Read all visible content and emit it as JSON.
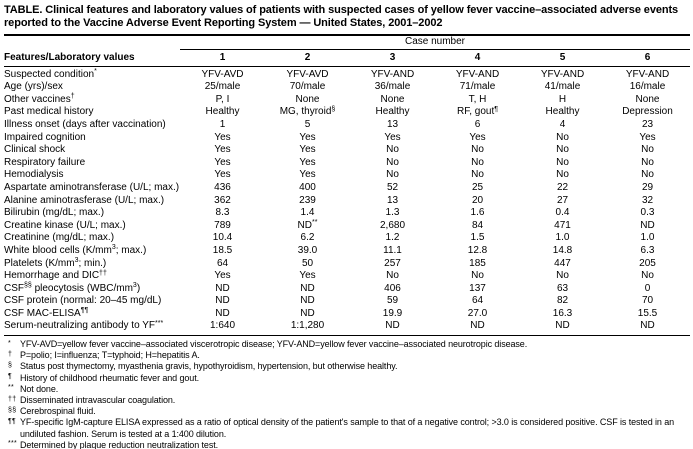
{
  "title": "TABLE. Clinical features and laboratory values of patients with suspected cases of yellow fever vaccine–associated adverse events reported to the Vaccine Adverse Event Reporting System — United States, 2001–2002",
  "colors": {
    "text": "#000000",
    "background": "#ffffff",
    "rule": "#000000"
  },
  "table": {
    "span_header": "Case number",
    "col_header_label": "Features/Laboratory values",
    "case_numbers": [
      "1",
      "2",
      "3",
      "4",
      "5",
      "6"
    ],
    "rows": [
      {
        "label": "Suspected condition^{*}",
        "values": [
          "YFV-AVD",
          "YFV-AVD",
          "YFV-AND",
          "YFV-AND",
          "YFV-AND",
          "YFV-AND"
        ]
      },
      {
        "label": "Age (yrs)/sex",
        "values": [
          "25/male",
          "70/male",
          "36/male",
          "71/male",
          "41/male",
          "16/male"
        ]
      },
      {
        "label": "Other vaccines^{†}",
        "values": [
          "P, I",
          "None",
          "None",
          "T, H",
          "H",
          "None"
        ]
      },
      {
        "label": "Past medical history",
        "values": [
          "Healthy",
          "MG, thyroid^{§}",
          "Healthy",
          "RF, gout^{¶}",
          "Healthy",
          "Depression"
        ]
      },
      {
        "label": "Illness onset (days after vaccination)",
        "values": [
          "1",
          "5",
          "13",
          "6",
          "4",
          "23"
        ]
      },
      {
        "label": "Impaired cognition",
        "values": [
          "Yes",
          "Yes",
          "Yes",
          "Yes",
          "No",
          "Yes"
        ]
      },
      {
        "label": "Clinical shock",
        "values": [
          "Yes",
          "Yes",
          "No",
          "No",
          "No",
          "No"
        ]
      },
      {
        "label": "Respiratory failure",
        "values": [
          "Yes",
          "Yes",
          "No",
          "No",
          "No",
          "No"
        ]
      },
      {
        "label": "Hemodialysis",
        "values": [
          "Yes",
          "Yes",
          "No",
          "No",
          "No",
          "No"
        ]
      },
      {
        "label": "Aspartate aminotransferase (U/L; max.)",
        "values": [
          "436",
          "400",
          "52",
          "25",
          "22",
          "29"
        ]
      },
      {
        "label": "Alanine aminotrasferase (U/L; max.)",
        "values": [
          "362",
          "239",
          "13",
          "20",
          "27",
          "32"
        ]
      },
      {
        "label": "Bilirubin (mg/dL; max.)",
        "values": [
          "8.3",
          "1.4",
          "1.3",
          "1.6",
          "0.4",
          "0.3"
        ]
      },
      {
        "label": "Creatine kinase (U/L; max.)",
        "values": [
          "789",
          "ND^{**}",
          "2,680",
          "84",
          "471",
          "ND"
        ]
      },
      {
        "label": "Creatinine (mg/dL; max.)",
        "values": [
          "10.4",
          "6.2",
          "1.2",
          "1.5",
          "1.0",
          "1.0"
        ]
      },
      {
        "label": "White blood cells (K/mm^{3}; max.)",
        "values": [
          "18.5",
          "39.0",
          "11.1",
          "12.8",
          "14.8",
          "6.3"
        ]
      },
      {
        "label": "Platelets (K/mm^{3}; min.)",
        "values": [
          "64",
          "50",
          "257",
          "185",
          "447",
          "205"
        ]
      },
      {
        "label": "Hemorrhage and DIC^{††}",
        "values": [
          "Yes",
          "Yes",
          "No",
          "No",
          "No",
          "No"
        ]
      },
      {
        "label": "CSF^{§§} pleocytosis (WBC/mm^{3})",
        "values": [
          "ND",
          "ND",
          "406",
          "137",
          "63",
          "0"
        ]
      },
      {
        "label": "CSF protein (normal: 20–45 mg/dL)",
        "values": [
          "ND",
          "ND",
          "59",
          "64",
          "82",
          "70"
        ]
      },
      {
        "label": "CSF MAC-ELISA^{¶¶}",
        "values": [
          "ND",
          "ND",
          "19.9",
          "27.0",
          "16.3",
          "15.5"
        ]
      },
      {
        "label": "Serum-neutralizing antibody to YF^{***}",
        "values": [
          "1:640",
          "1:1,280",
          "ND",
          "ND",
          "ND",
          "ND"
        ]
      }
    ]
  },
  "footnotes": [
    {
      "marker": "*",
      "text": "YFV-AVD=yellow fever vaccine–associated viscerotropic disease; YFV-AND=yellow fever vaccine–associated neurotropic disease."
    },
    {
      "marker": "†",
      "text": "P=polio; I=influenza; T=typhoid; H=hepatitis A."
    },
    {
      "marker": "§",
      "text": "Status post thymectomy, myasthenia gravis, hypothyroidism, hypertension, but otherwise healthy."
    },
    {
      "marker": "¶",
      "text": "History of childhood rheumatic fever and gout."
    },
    {
      "marker": "**",
      "text": "Not done."
    },
    {
      "marker": "††",
      "text": "Disseminated intravascular coagulation."
    },
    {
      "marker": "§§",
      "text": "Cerebrospinal fluid."
    },
    {
      "marker": "¶¶",
      "text": "YF-specific IgM-capture ELISA expressed as a ratio of optical density of the patient's sample to that of a negative control; >3.0 is considered positive. CSF is tested in an undiluted fashion. Serum is tested at a 1:400 dilution."
    },
    {
      "marker": "***",
      "text": "Determined by plaque reduction neutralization test."
    }
  ]
}
